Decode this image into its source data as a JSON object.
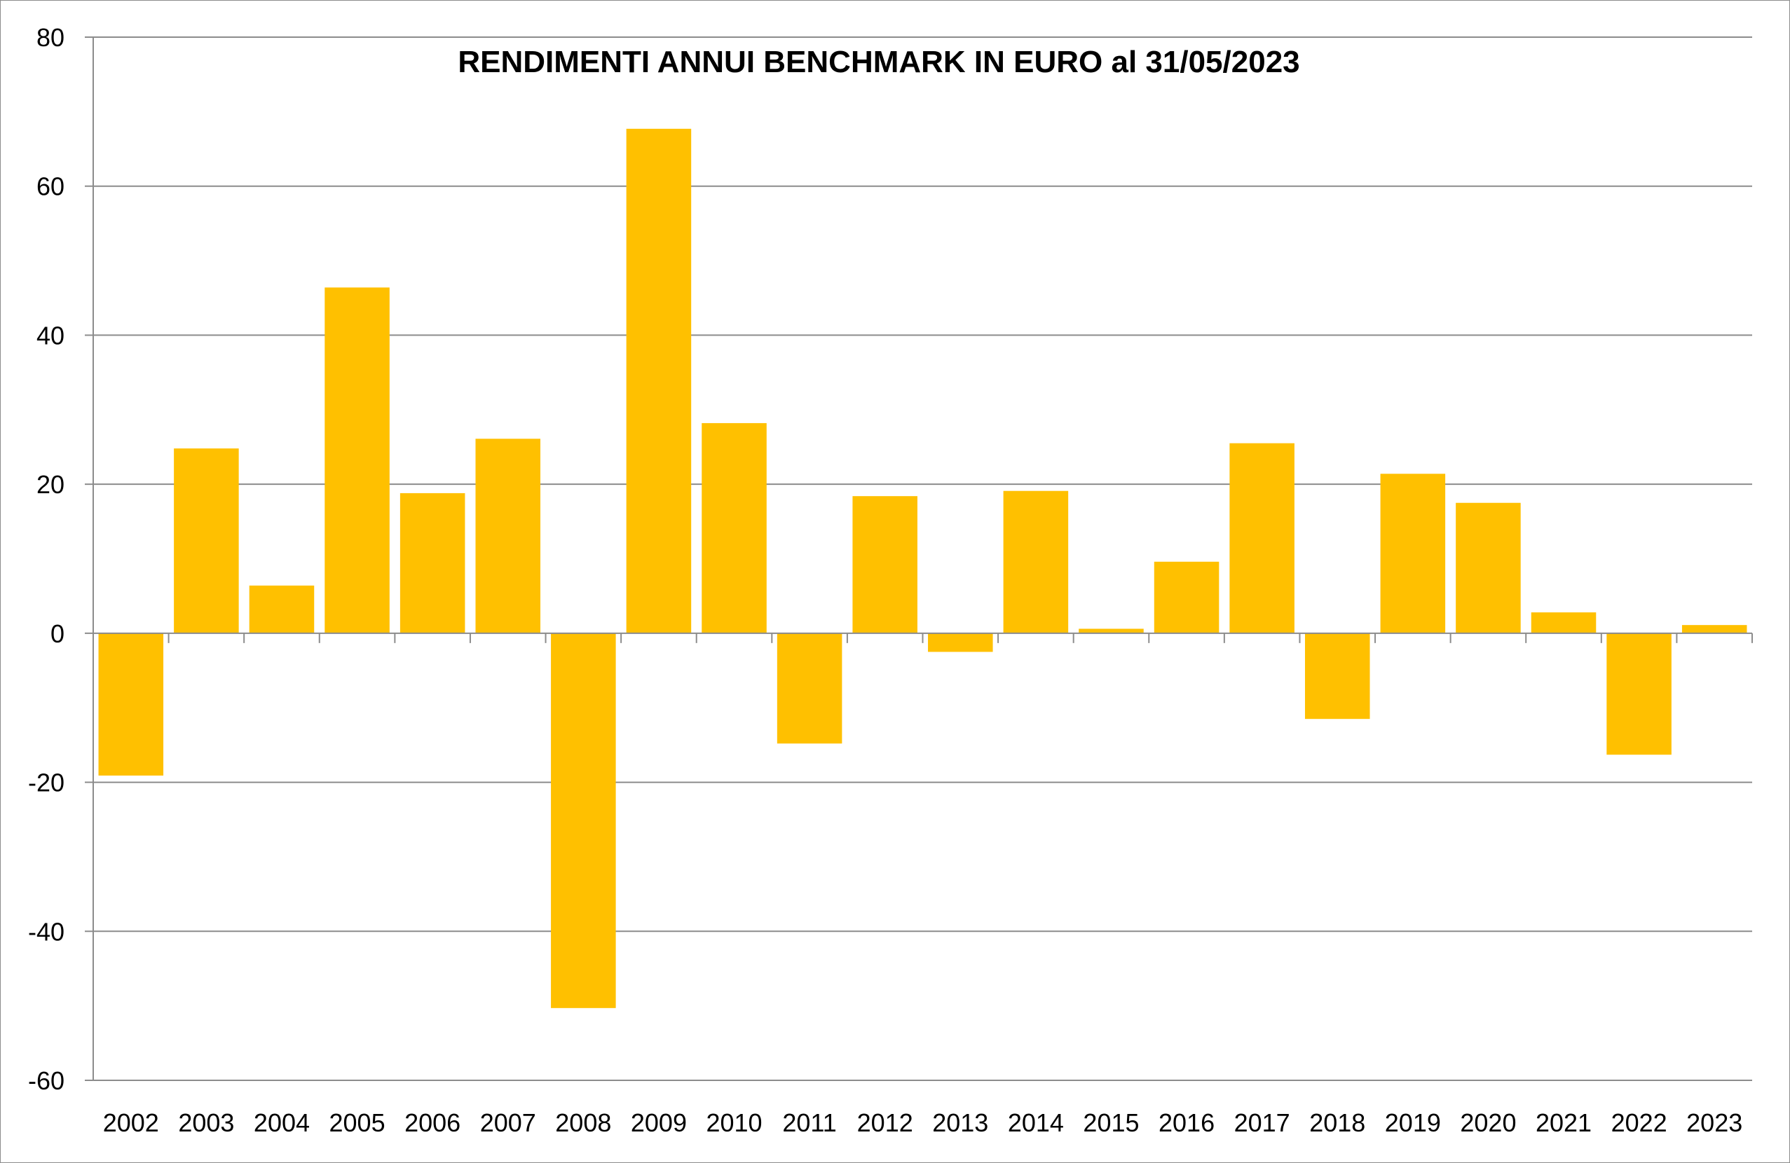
{
  "chart_data": {
    "type": "bar",
    "title": "RENDIMENTI ANNUI BENCHMARK IN EURO al 31/05/2023",
    "xlabel": "",
    "ylabel": "",
    "categories": [
      "2002",
      "2003",
      "2004",
      "2005",
      "2006",
      "2007",
      "2008",
      "2009",
      "2010",
      "2011",
      "2012",
      "2013",
      "2014",
      "2015",
      "2016",
      "2017",
      "2018",
      "2019",
      "2020",
      "2021",
      "2022",
      "2023"
    ],
    "series": [
      {
        "values": [
          -19.1,
          24.8,
          6.4,
          46.4,
          18.8,
          26.1,
          -50.3,
          67.7,
          28.2,
          -14.8,
          18.4,
          -2.5,
          19.1,
          0.6,
          9.6,
          25.5,
          -11.5,
          21.4,
          17.5,
          2.8,
          -16.3,
          1.1
        ]
      }
    ],
    "ylim": [
      -60,
      80
    ],
    "yticks": [
      80,
      60,
      40,
      20,
      0,
      -20,
      -40,
      -60
    ],
    "grid": true,
    "legend": "none",
    "bar_color": "#FFC000",
    "grid_color": "#8c8c8c",
    "axis_color": "#8c8c8c"
  }
}
